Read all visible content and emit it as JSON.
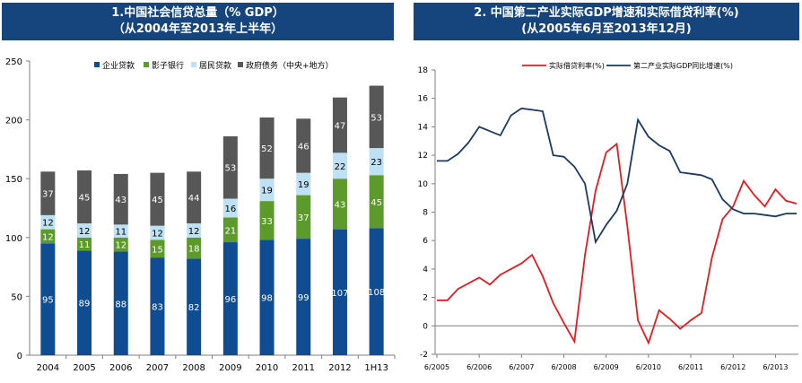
{
  "charts": [
    {
      "title_line1": "1.中国社会信贷总量（% GDP）",
      "title_line2": "（从2004年至2013年上半年）"
    },
    {
      "title_line1": "2. 中国第二产业实际GDP增速和实际借贷利率(%)",
      "title_line2": "(从2005年6月至2013年12月)"
    }
  ],
  "chart_data": [
    {
      "type": "bar",
      "stacked": true,
      "title": "1.中国社会信贷总量（% GDP） （从2004年至2013年上半年）",
      "categories": [
        "2004",
        "2005",
        "2006",
        "2007",
        "2008",
        "2009",
        "2010",
        "2011",
        "2012",
        "1H13"
      ],
      "series": [
        {
          "name": "企业贷款",
          "color": "#0f4c92",
          "values": [
            95,
            89,
            88,
            83,
            82,
            96,
            98,
            99,
            107,
            108
          ]
        },
        {
          "name": "影子银行",
          "color": "#5c9a2c",
          "values": [
            12,
            11,
            12,
            15,
            18,
            21,
            33,
            37,
            43,
            45
          ]
        },
        {
          "name": "居民贷款",
          "color": "#bfe1f4",
          "values": [
            12,
            12,
            11,
            12,
            12,
            16,
            19,
            19,
            22,
            23
          ]
        },
        {
          "name": "政府债务（中央+地方）",
          "color": "#575757",
          "values": [
            37,
            45,
            43,
            45,
            44,
            53,
            52,
            46,
            47,
            53
          ]
        }
      ],
      "ylim": [
        0,
        250
      ],
      "yticks": [
        0,
        50,
        100,
        150,
        200,
        250
      ],
      "legend": "top"
    },
    {
      "type": "line",
      "title": "2. 中国第二产业实际GDP增速和实际借贷利率(%) (从2005年6月至2013年12月)",
      "x": [
        "2005-06",
        "2005-09",
        "2005-12",
        "2006-03",
        "2006-06",
        "2006-09",
        "2006-12",
        "2007-03",
        "2007-06",
        "2007-09",
        "2007-12",
        "2008-03",
        "2008-06",
        "2008-09",
        "2008-12",
        "2009-03",
        "2009-06",
        "2009-09",
        "2009-12",
        "2010-03",
        "2010-06",
        "2010-09",
        "2010-12",
        "2011-03",
        "2011-06",
        "2011-09",
        "2011-12",
        "2012-03",
        "2012-06",
        "2012-09",
        "2012-12",
        "2013-03",
        "2013-06",
        "2013-09",
        "2013-12"
      ],
      "series": [
        {
          "name": "实际借贷利率(%)",
          "color": "#e8191f",
          "values": [
            1.8,
            1.8,
            2.6,
            3.0,
            3.4,
            2.9,
            3.6,
            4.0,
            4.4,
            5.0,
            3.5,
            1.6,
            0.2,
            -1.1,
            5.0,
            9.5,
            12.2,
            12.8,
            7.0,
            0.4,
            -1.2,
            1.1,
            0.5,
            -0.2,
            0.4,
            0.9,
            4.8,
            7.5,
            8.4,
            10.2,
            9.2,
            8.4,
            9.6,
            8.8,
            8.6
          ]
        },
        {
          "name": "第二产业实际GDP同比增速(%)",
          "color": "#1a3a63",
          "values": [
            11.6,
            11.6,
            12.1,
            12.9,
            14.0,
            13.7,
            13.4,
            14.8,
            15.3,
            15.2,
            15.1,
            12.0,
            11.9,
            11.2,
            10.0,
            5.9,
            7.1,
            8.1,
            10.0,
            14.5,
            13.3,
            12.7,
            12.3,
            10.8,
            10.7,
            10.6,
            10.3,
            8.9,
            8.2,
            7.9,
            7.9,
            7.8,
            7.7,
            7.9,
            7.9
          ]
        }
      ],
      "ylim": [
        -2,
        18
      ],
      "yticks": [
        -2,
        0,
        2,
        4,
        6,
        8,
        10,
        12,
        14,
        16,
        18
      ],
      "xticks": [
        "6/2005",
        "6/2006",
        "6/2007",
        "6/2008",
        "6/2009",
        "6/2010",
        "6/2011",
        "6/2012",
        "6/2013"
      ],
      "legend": "top"
    }
  ]
}
